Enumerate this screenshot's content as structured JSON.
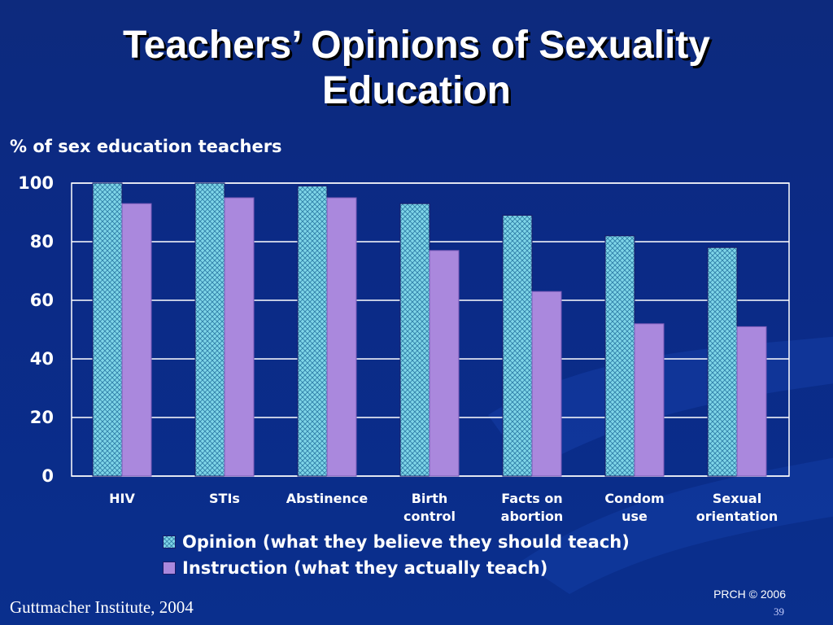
{
  "slide": {
    "title_line1": "Teachers’ Opinions of Sexuality",
    "title_line2": "Education",
    "ylabel": "% of sex education teachers",
    "source": "Guttmacher Institute, 2004",
    "copyright": "PRCH © 2006",
    "slide_number": "39"
  },
  "colors": {
    "opinion": "#7fd6e8",
    "instruction": "#aa88dd",
    "gridline": "#ffffff",
    "text": "#ffffff"
  },
  "chart_data": {
    "type": "bar",
    "ylabel": "% of sex education teachers",
    "categories": [
      [
        "HIV"
      ],
      [
        "STIs"
      ],
      [
        "Abstinence"
      ],
      [
        "Birth",
        "control"
      ],
      [
        "Facts on",
        "abortion"
      ],
      [
        "Condom",
        "use"
      ],
      [
        "Sexual",
        "orientation"
      ]
    ],
    "series": [
      {
        "name": "Opinion (what they believe they should teach)",
        "values": [
          100,
          100,
          99,
          93,
          89,
          82,
          78
        ]
      },
      {
        "name": "Instruction (what they actually teach)",
        "values": [
          93,
          95,
          95,
          77,
          63,
          52,
          51
        ]
      }
    ],
    "ylim": [
      0,
      100
    ],
    "yticks": [
      0,
      20,
      40,
      60,
      80,
      100
    ],
    "grid": true,
    "legend": "bottom"
  }
}
